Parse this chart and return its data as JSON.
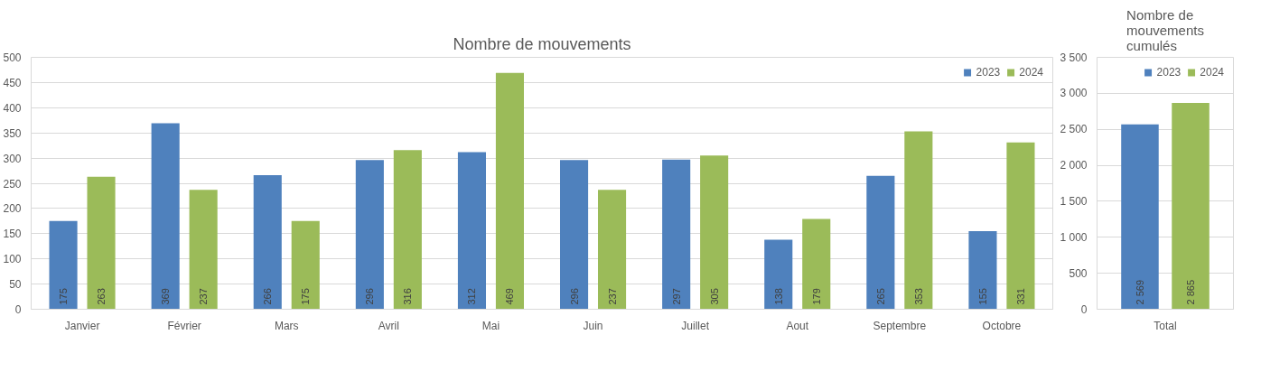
{
  "chart_data": [
    {
      "type": "bar",
      "title": "Nombre de mouvements",
      "categories": [
        "Janvier",
        "Février",
        "Mars",
        "Avril",
        "Mai",
        "Juin",
        "Juillet",
        "Aout",
        "Septembre",
        "Octobre"
      ],
      "series": [
        {
          "name": "2023",
          "color": "#4f81bd",
          "values": [
            175,
            369,
            266,
            296,
            312,
            296,
            297,
            138,
            265,
            155
          ]
        },
        {
          "name": "2024",
          "color": "#9bbb59",
          "values": [
            263,
            237,
            175,
            316,
            469,
            237,
            305,
            179,
            353,
            331
          ]
        }
      ],
      "ylim": [
        0,
        500
      ],
      "yticks": [
        0,
        50,
        100,
        150,
        200,
        250,
        300,
        350,
        400,
        450,
        500
      ],
      "grid": "y",
      "legend": "top right",
      "data_labels": true
    },
    {
      "type": "bar",
      "title": "Nombre de mouvements cumulés",
      "categories": [
        "Total"
      ],
      "series": [
        {
          "name": "2023",
          "color": "#4f81bd",
          "values": [
            2569
          ],
          "value_labels": [
            "2 569"
          ]
        },
        {
          "name": "2024",
          "color": "#9bbb59",
          "values": [
            2865
          ],
          "value_labels": [
            "2 865"
          ]
        }
      ],
      "ylim": [
        0,
        3500
      ],
      "yticks": [
        0,
        {
          "value": 500,
          "label": "500"
        },
        {
          "value": 1000,
          "label": "1 000"
        },
        {
          "value": 1500,
          "label": "1 500"
        },
        {
          "value": 2000,
          "label": "2 000"
        },
        {
          "value": 2500,
          "label": "2 500"
        },
        {
          "value": 3000,
          "label": "3 000"
        },
        {
          "value": 3500,
          "label": "3 500"
        }
      ],
      "grid": "y",
      "legend": "top right"
    }
  ]
}
